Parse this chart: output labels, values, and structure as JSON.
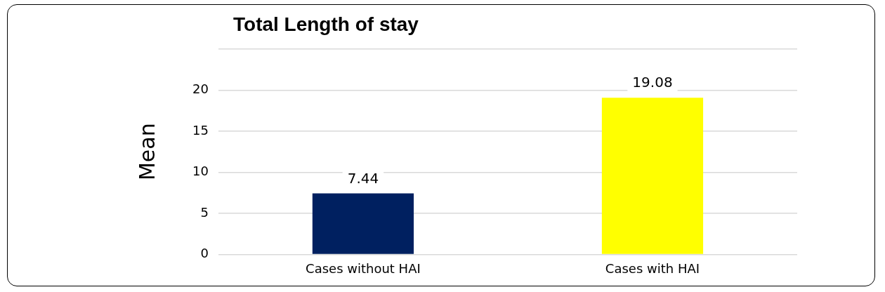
{
  "chart_data": {
    "type": "bar",
    "title": "Total Length of stay",
    "ylabel": "Mean",
    "categories": [
      "Cases without HAI",
      "Cases with HAI"
    ],
    "values": [
      7.44,
      19.08
    ],
    "colors": [
      "#002060",
      "#ffff00"
    ],
    "ylim": [
      0,
      25
    ],
    "yticks": [
      0,
      5,
      10,
      15,
      20,
      {
        "value": 25,
        "label": null
      }
    ],
    "grid": "y",
    "data_labels": true
  }
}
